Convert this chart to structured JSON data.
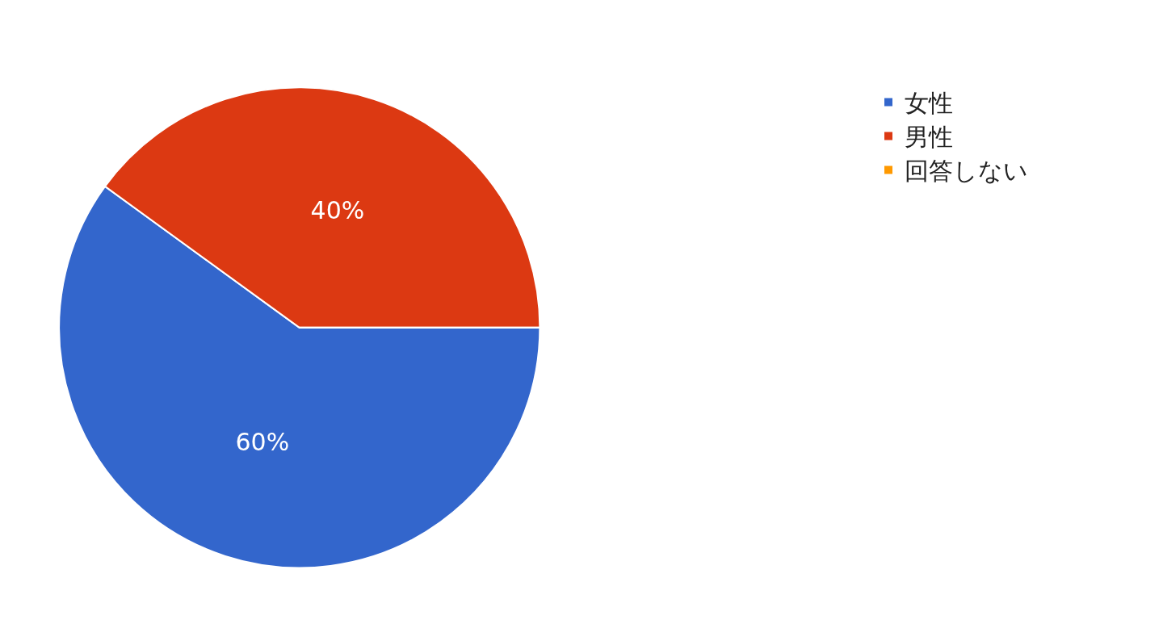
{
  "chart_data": {
    "type": "pie",
    "categories": [
      "女性",
      "男性",
      "回答しない"
    ],
    "values": [
      60,
      40,
      0
    ],
    "colors": [
      "#3366cc",
      "#dc3912",
      "#ff9900"
    ],
    "value_labels": [
      "60%",
      "40%",
      null
    ],
    "legend": "right"
  }
}
